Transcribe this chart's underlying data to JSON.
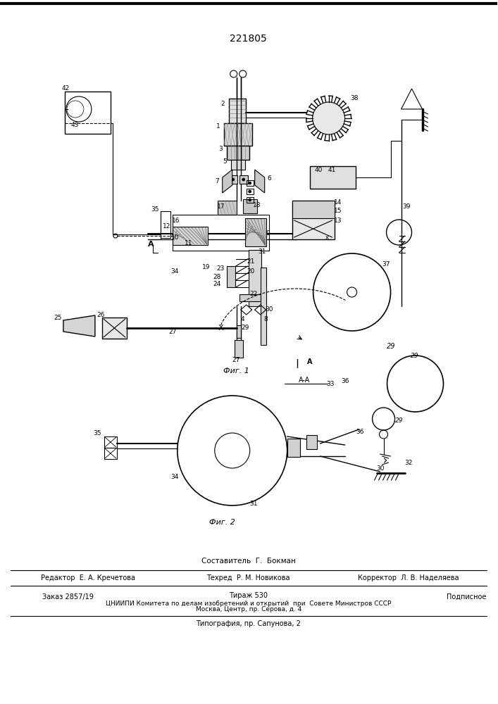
{
  "patent_number": "221805",
  "background_color": "#ffffff",
  "fig1_caption": "Фиг. 1",
  "fig2_caption": "Фиг. 2",
  "footer": {
    "sostavitel": "Составитель  Г.  Бокман",
    "redaktor": "Редактор  Е. А. Кречетова",
    "tehred": "Техред  Р. М. Новикова",
    "korrektor": "Корректор  Л. В. Наделяева",
    "zakaz": "Заказ 2857/19",
    "tirazh": "Тираж 530",
    "podpisnoe": "Подписное",
    "tsnipi": "ЦНИИПИ Комитета по делам изобретений и открытий  при  Совете Министров СССР",
    "moskva": "Москва, Центр, пр. Серова, д. 4",
    "tipografia": "Типография, пр. Сапунова, 2"
  }
}
